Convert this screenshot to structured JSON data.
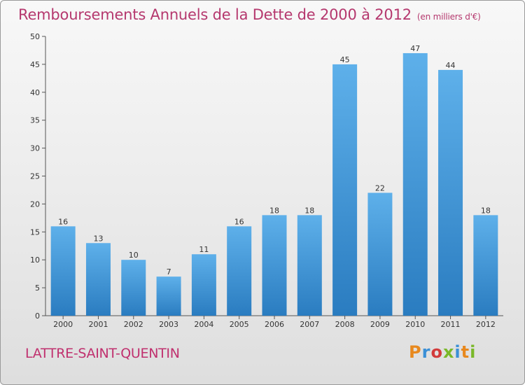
{
  "header": {
    "title": "Remboursements Annuels de la Dette de 2000 à 2012",
    "unit": "(en milliers d'€)"
  },
  "footer": {
    "commune": "LATTRE-SAINT-QUENTIN",
    "brand": "Proxiti"
  },
  "colors": {
    "title": "#b5386e",
    "bar_top": "#5eb0ea",
    "bar_bottom": "#2a7cc0",
    "brand_letters": [
      "#e8891e",
      "#3a8fd6",
      "#d23b3b",
      "#7ab829",
      "#3a8fd6",
      "#e8891e",
      "#7ab829"
    ]
  },
  "chart_data": {
    "type": "bar",
    "categories": [
      "2000",
      "2001",
      "2002",
      "2003",
      "2004",
      "2005",
      "2006",
      "2007",
      "2008",
      "2009",
      "2010",
      "2011",
      "2012"
    ],
    "values": [
      16,
      13,
      10,
      7,
      11,
      16,
      18,
      18,
      45,
      22,
      47,
      44,
      18
    ],
    "title": "Remboursements Annuels de la Dette de 2000 à 2012",
    "xlabel": "",
    "ylabel": "",
    "ylim": [
      0,
      50
    ],
    "yticks": [
      0,
      5,
      10,
      15,
      20,
      25,
      30,
      35,
      40,
      45,
      50
    ],
    "grid": false,
    "data_labels": true
  }
}
